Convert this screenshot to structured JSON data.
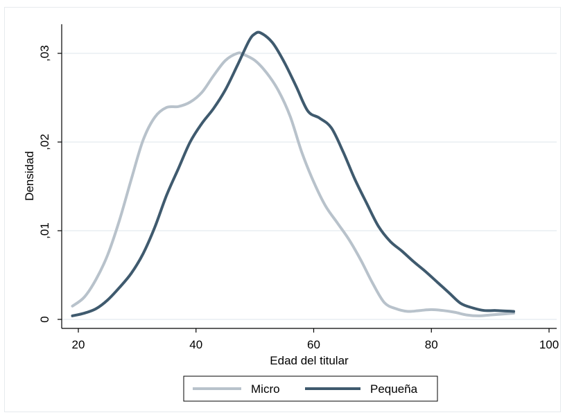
{
  "chart_data": {
    "type": "line",
    "title": "",
    "xlabel": "Edad del titular",
    "ylabel": "Densidad",
    "xlim": [
      18,
      101
    ],
    "ylim": [
      0,
      0.033
    ],
    "x_ticks": [
      20,
      40,
      60,
      80,
      100
    ],
    "x_tick_labels": [
      "20",
      "40",
      "60",
      "80",
      "100"
    ],
    "y_ticks": [
      0,
      0.01,
      0.02,
      0.03
    ],
    "y_tick_labels": [
      "0",
      ",01",
      ",02",
      ",03"
    ],
    "grid": "horizontal",
    "legend_position": "bottom",
    "series": [
      {
        "name": "Micro",
        "color": "#b8c2cb",
        "x": [
          19,
          21,
          23,
          25,
          27,
          29,
          31,
          33,
          35,
          37,
          39,
          41,
          43,
          45,
          47,
          48,
          50,
          52,
          54,
          56,
          58,
          60,
          62,
          64,
          66,
          68,
          70,
          72,
          74,
          76,
          78,
          80,
          82,
          84,
          86,
          88,
          90,
          92,
          94
        ],
        "y": [
          0.0015,
          0.0025,
          0.0045,
          0.0073,
          0.0112,
          0.0158,
          0.0202,
          0.0228,
          0.0239,
          0.024,
          0.0245,
          0.0256,
          0.0275,
          0.0292,
          0.03,
          0.0299,
          0.0292,
          0.0278,
          0.0258,
          0.0229,
          0.0188,
          0.0155,
          0.0128,
          0.0109,
          0.009,
          0.0067,
          0.0041,
          0.0019,
          0.0012,
          0.0009,
          0.001,
          0.0011,
          0.001,
          0.0008,
          0.0005,
          0.0004,
          0.0005,
          0.0006,
          0.0007
        ]
      },
      {
        "name": "Pequeña",
        "color": "#3f5a6e",
        "x": [
          19,
          21,
          23,
          25,
          27,
          29,
          31,
          33,
          35,
          37,
          39,
          41,
          43,
          45,
          47,
          49,
          50,
          51,
          53,
          55,
          57,
          59,
          61,
          63,
          65,
          67,
          69,
          71,
          73,
          75,
          77,
          79,
          81,
          83,
          85,
          87,
          89,
          91,
          94
        ],
        "y": [
          0.0004,
          0.0007,
          0.0012,
          0.0022,
          0.0036,
          0.0052,
          0.0074,
          0.0104,
          0.014,
          0.017,
          0.02,
          0.0221,
          0.0238,
          0.0259,
          0.0286,
          0.0314,
          0.0322,
          0.0323,
          0.0312,
          0.029,
          0.0263,
          0.0235,
          0.0227,
          0.0216,
          0.0189,
          0.0158,
          0.0131,
          0.0105,
          0.0088,
          0.0077,
          0.0065,
          0.0054,
          0.0042,
          0.003,
          0.0018,
          0.0013,
          0.001,
          0.001,
          0.0009
        ]
      }
    ]
  },
  "legend": {
    "items": [
      {
        "label": "Micro",
        "color": "#b8c2cb"
      },
      {
        "label": "Pequeña",
        "color": "#3f5a6e"
      }
    ]
  }
}
